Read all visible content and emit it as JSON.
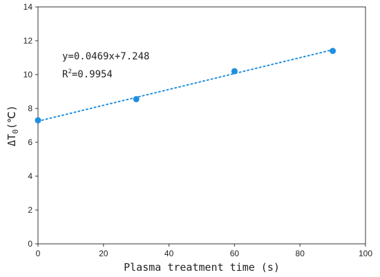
{
  "chart_data": {
    "type": "scatter",
    "xlabel": "Plasma treatment time (s)",
    "ylabel": {
      "main": "ΔT",
      "sub": "0",
      "unit": "(℃)"
    },
    "xlim": [
      0,
      100
    ],
    "ylim": [
      0,
      14
    ],
    "xticks": [
      0,
      20,
      40,
      60,
      80,
      100
    ],
    "yticks": [
      0,
      2,
      4,
      6,
      8,
      10,
      12,
      14
    ],
    "grid": false,
    "series": [
      {
        "x": [
          0,
          30,
          60,
          90
        ],
        "y": [
          7.3,
          8.55,
          10.2,
          11.4
        ],
        "color": "#1f8fdf"
      }
    ],
    "fit": {
      "type": "linear",
      "slope": 0.0469,
      "intercept": 7.248,
      "x_range": [
        0,
        90
      ],
      "style": "dotted",
      "color": "#1f8fdf"
    },
    "annotations": {
      "equation": "y=0.0469x+7.248",
      "r2_label": "R",
      "r2_sup": "2",
      "r2_value": "=0.9954"
    }
  }
}
